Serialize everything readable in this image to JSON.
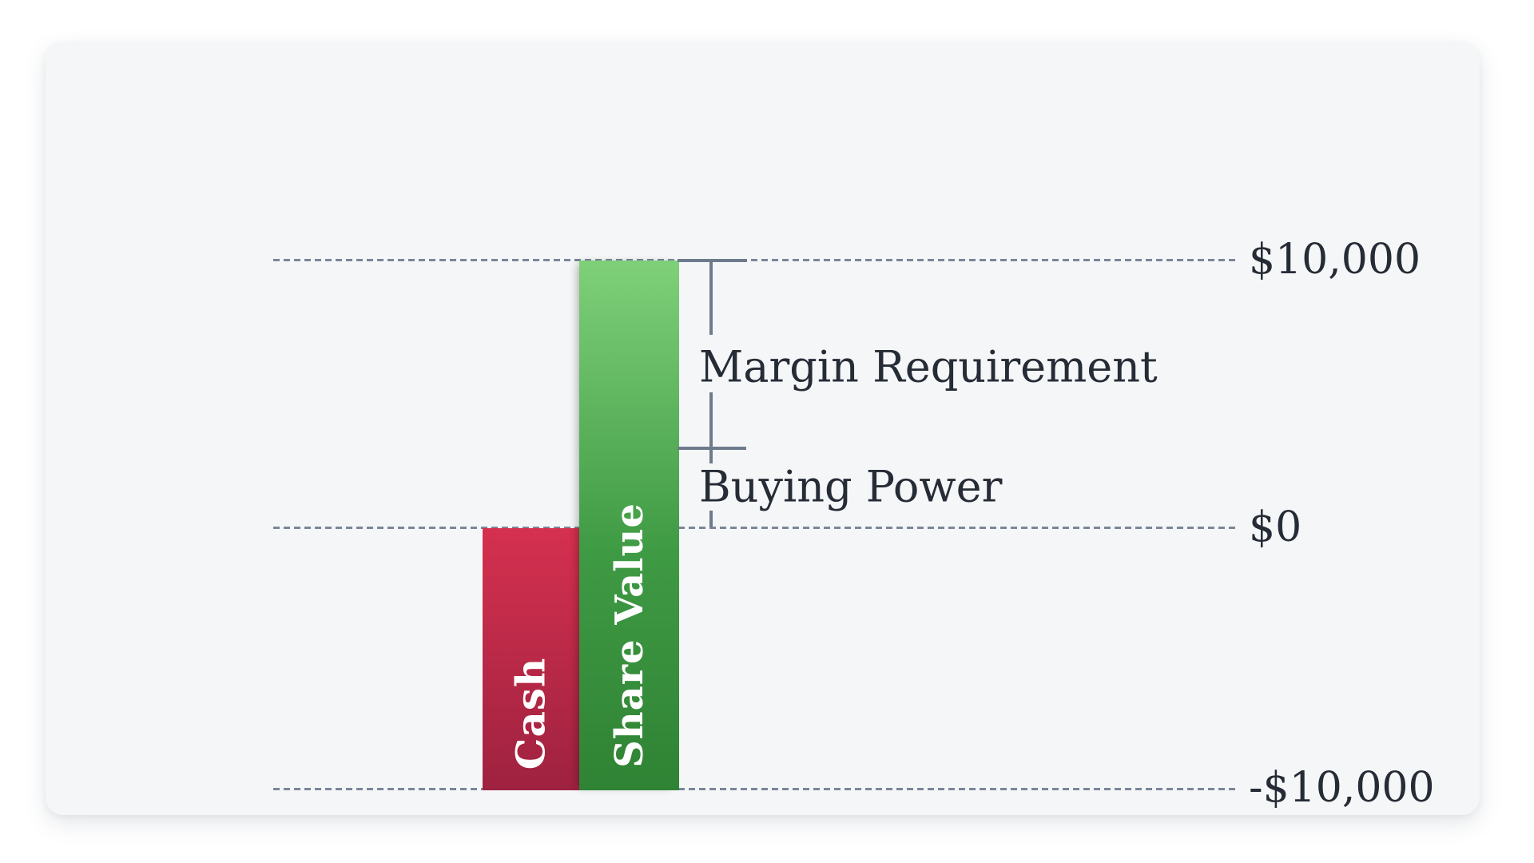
{
  "page": {
    "background": "#ffffff",
    "card_background": "#f5f6f8"
  },
  "colors": {
    "grid_dash": "#7b8698",
    "dimension_line": "#6e7b8d",
    "label_text": "#262c36",
    "bar_label_text": "#ffffff",
    "cash_bar_top": "#d5304f",
    "cash_bar_bottom": "#9e2240",
    "share_bar_top": "#7fd079",
    "share_bar_bottom": "#2f8334"
  },
  "chart_data": {
    "type": "bar",
    "orientation": "vertical",
    "ylim": [
      -10000,
      10000
    ],
    "grid": "dashed-horizontal",
    "legend_position": "none",
    "gridlines": [
      {
        "value": 10000,
        "label": "$10,000"
      },
      {
        "value": 0,
        "label": "$0"
      },
      {
        "value": -10000,
        "label": "-$10,000"
      }
    ],
    "bars": [
      {
        "label": "Cash",
        "from": -10000,
        "to": 0,
        "color": "crimson-gradient"
      },
      {
        "label": "Share Value",
        "from": -10000,
        "to": 10000,
        "color": "green-gradient"
      }
    ],
    "annotations": [
      {
        "label": "Margin Requirement",
        "from": 3000,
        "to": 10000
      },
      {
        "label": "Buying Power",
        "from": 0,
        "to": 3000
      }
    ]
  }
}
